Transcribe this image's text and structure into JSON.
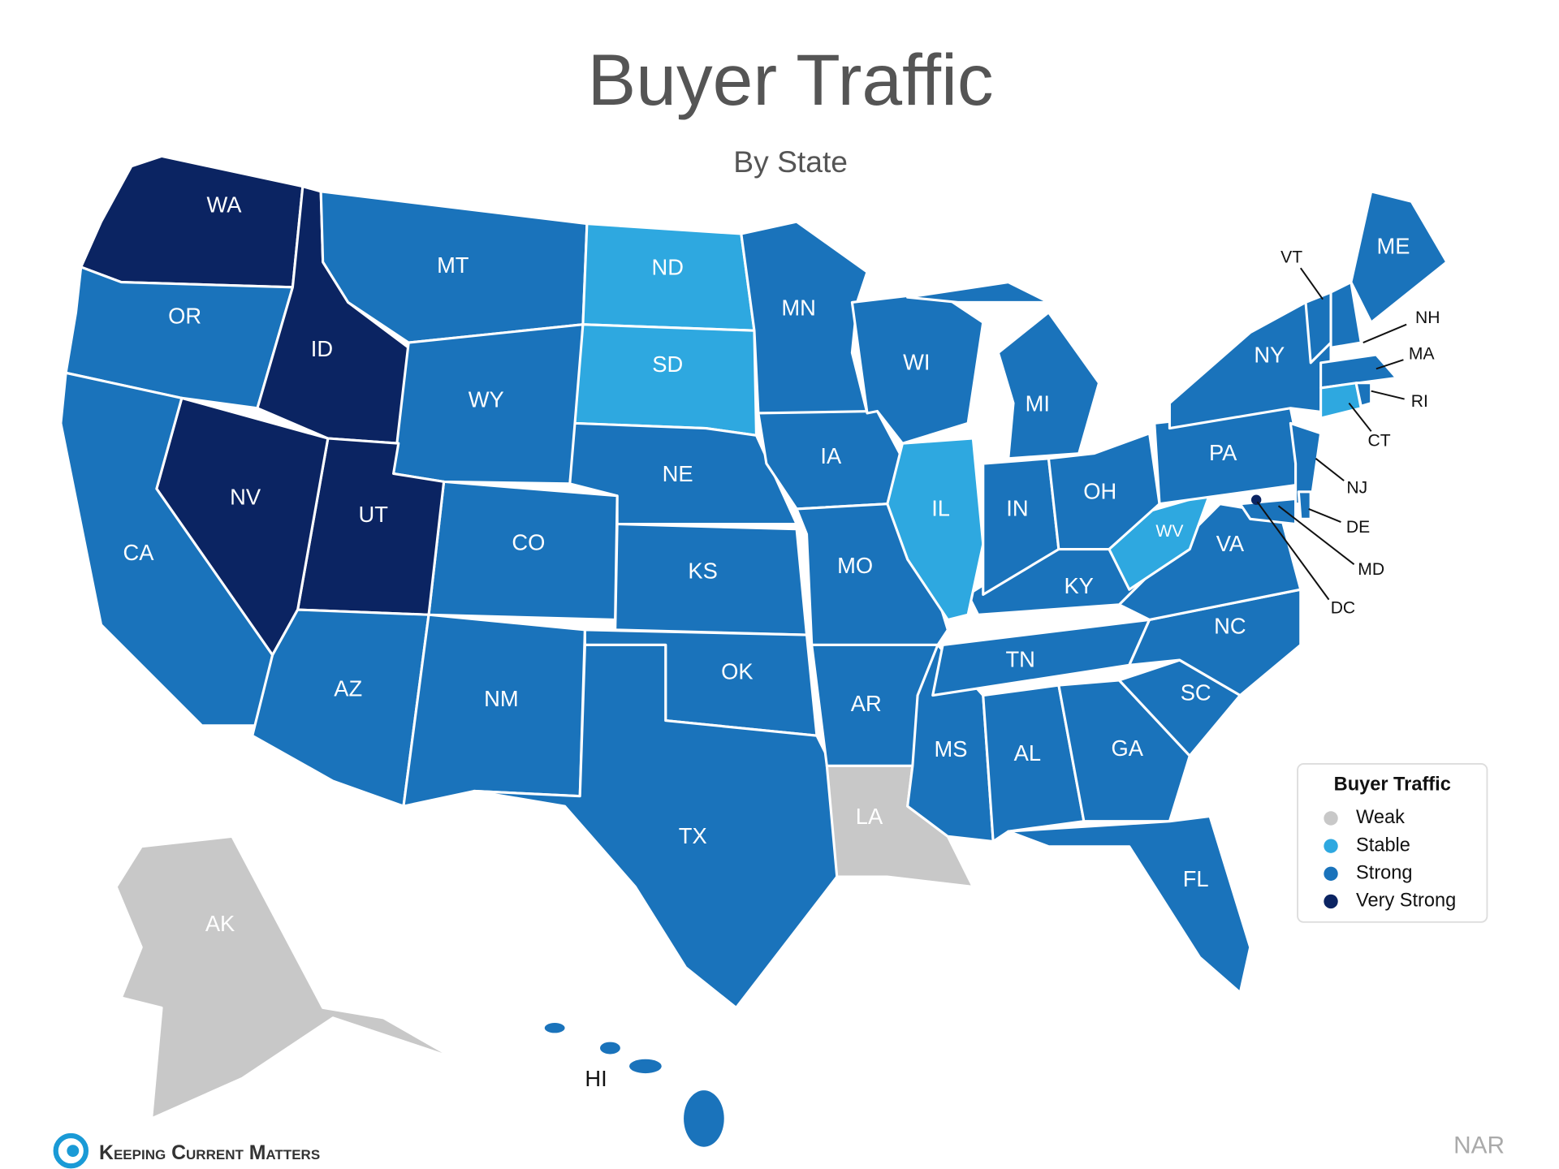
{
  "title": "Buyer Traffic",
  "subtitle": "By State",
  "legend": {
    "title": "Buyer Traffic",
    "items": [
      {
        "name": "Weak",
        "color": "#c8c8c8",
        "states": [
          "LA",
          "AK"
        ]
      },
      {
        "name": "Stable",
        "color": "#2ea8e0",
        "states": [
          "ND",
          "SD",
          "IL",
          "WV",
          "CT"
        ]
      },
      {
        "name": "Strong",
        "color": "#1a73bb",
        "states": [
          "OR",
          "CA",
          "MT",
          "WY",
          "CO",
          "AZ",
          "NM",
          "NE",
          "KS",
          "OK",
          "TX",
          "MN",
          "IA",
          "MO",
          "AR",
          "WI",
          "MI",
          "IN",
          "OH",
          "KY",
          "TN",
          "MS",
          "AL",
          "GA",
          "FL",
          "SC",
          "NC",
          "VA",
          "PA",
          "NY",
          "NJ",
          "DE",
          "MD",
          "VT",
          "NH",
          "MA",
          "RI",
          "ME",
          "HI"
        ]
      },
      {
        "name": "Very Strong",
        "color": "#0b2462",
        "states": [
          "WA",
          "ID",
          "NV",
          "UT",
          "DC"
        ]
      }
    ]
  },
  "source": "NAR",
  "brand": "Keeping Current Matters"
}
